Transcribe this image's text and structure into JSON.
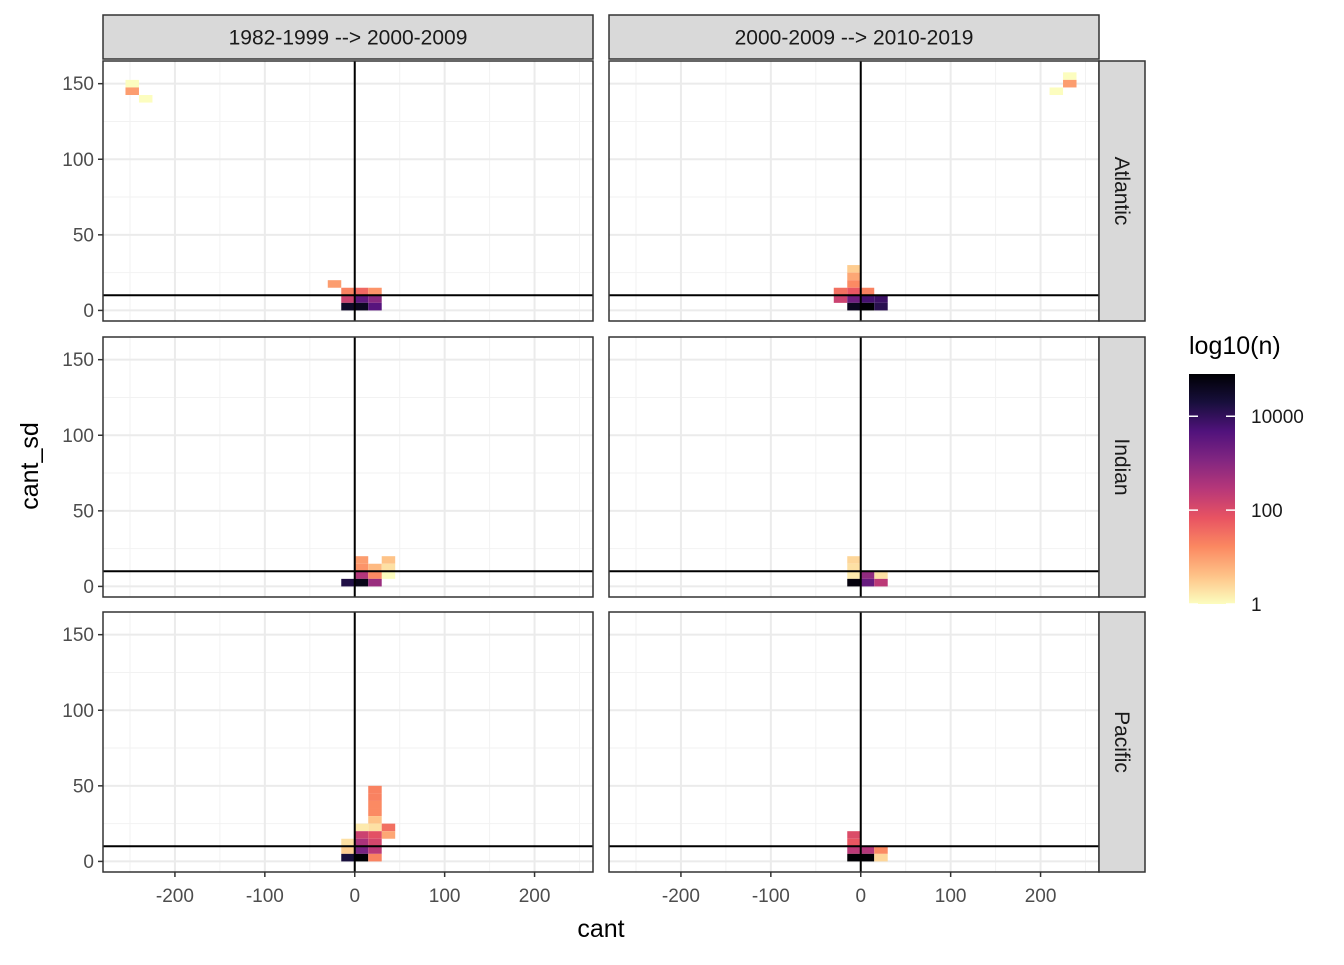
{
  "chart_data": {
    "type": "heatmap",
    "xlabel": "cant",
    "ylabel": "cant_sd",
    "xlim": [
      -280,
      265
    ],
    "ylim": [
      -7,
      165
    ],
    "x_ticks": [
      -200,
      -100,
      0,
      100,
      200
    ],
    "y_ticks": [
      0,
      50,
      100,
      150
    ],
    "bin_width": 15,
    "bin_height": 5,
    "hline_y": 10,
    "vline_x": 0,
    "columns": [
      "1982-1999 --> 2000-2009",
      "2000-2009 --> 2010-2019"
    ],
    "rows": [
      "Atlantic",
      "Indian",
      "Pacific"
    ],
    "legend": {
      "title": "log10(n)",
      "labels": [
        "10000",
        "100",
        "1"
      ],
      "label_values": [
        4,
        2,
        0
      ],
      "range": [
        0,
        4.9
      ],
      "colors": [
        "#FCFDBF",
        "#FEC287",
        "#FB8861",
        "#E85362",
        "#B73779",
        "#822681",
        "#51127C",
        "#180F3D",
        "#000004"
      ]
    },
    "panels": [
      {
        "row": "Atlantic",
        "col": "1982-1999 --> 2000-2009",
        "cells": [
          {
            "x": -247.5,
            "y": 150,
            "v": 0
          },
          {
            "x": -247.5,
            "y": 145,
            "v": 1
          },
          {
            "x": -232.5,
            "y": 140,
            "v": 0
          },
          {
            "x": -22.5,
            "y": 17.5,
            "v": 1
          },
          {
            "x": -7.5,
            "y": 12.5,
            "v": 1.3
          },
          {
            "x": 7.5,
            "y": 12.5,
            "v": 1.6
          },
          {
            "x": 22.5,
            "y": 12.5,
            "v": 1.1
          },
          {
            "x": -7.5,
            "y": 7.5,
            "v": 2.2
          },
          {
            "x": 7.5,
            "y": 7.5,
            "v": 3.5
          },
          {
            "x": 22.5,
            "y": 7.5,
            "v": 3
          },
          {
            "x": -7.5,
            "y": 2.5,
            "v": 4.5
          },
          {
            "x": 7.5,
            "y": 2.5,
            "v": 4.6
          },
          {
            "x": 22.5,
            "y": 2.5,
            "v": 3.6
          }
        ]
      },
      {
        "row": "Atlantic",
        "col": "2000-2009 --> 2010-2019",
        "cells": [
          {
            "x": 232.5,
            "y": 155,
            "v": 0
          },
          {
            "x": 232.5,
            "y": 150,
            "v": 1
          },
          {
            "x": 217.5,
            "y": 145,
            "v": 0
          },
          {
            "x": -7.5,
            "y": 27.5,
            "v": 0.5
          },
          {
            "x": -7.5,
            "y": 22.5,
            "v": 0.9
          },
          {
            "x": -7.5,
            "y": 17.5,
            "v": 1.2
          },
          {
            "x": -22.5,
            "y": 12.5,
            "v": 1.5
          },
          {
            "x": -7.5,
            "y": 12.5,
            "v": 1.8
          },
          {
            "x": 7.5,
            "y": 12.5,
            "v": 1.3
          },
          {
            "x": -22.5,
            "y": 7.5,
            "v": 2.2
          },
          {
            "x": -7.5,
            "y": 7.5,
            "v": 3.3
          },
          {
            "x": 7.5,
            "y": 7.5,
            "v": 3.8
          },
          {
            "x": 22.5,
            "y": 7.5,
            "v": 3.9
          },
          {
            "x": -7.5,
            "y": 2.5,
            "v": 4.6
          },
          {
            "x": 7.5,
            "y": 2.5,
            "v": 4.9
          },
          {
            "x": 22.5,
            "y": 2.5,
            "v": 4.1
          }
        ]
      },
      {
        "row": "Indian",
        "col": "1982-1999 --> 2000-2009",
        "cells": [
          {
            "x": 7.5,
            "y": 17.5,
            "v": 1
          },
          {
            "x": 7.5,
            "y": 12.5,
            "v": 1.1
          },
          {
            "x": 22.5,
            "y": 12.5,
            "v": 0.7
          },
          {
            "x": 37.5,
            "y": 17.5,
            "v": 0.6
          },
          {
            "x": 37.5,
            "y": 12.5,
            "v": 0.3
          },
          {
            "x": 37.5,
            "y": 7.5,
            "v": 0
          },
          {
            "x": 7.5,
            "y": 7.5,
            "v": 2.5
          },
          {
            "x": 22.5,
            "y": 7.5,
            "v": 1.2
          },
          {
            "x": -7.5,
            "y": 2.5,
            "v": 4.2
          },
          {
            "x": 7.5,
            "y": 2.5,
            "v": 4.7
          },
          {
            "x": 22.5,
            "y": 2.5,
            "v": 2.8
          }
        ]
      },
      {
        "row": "Indian",
        "col": "2000-2009 --> 2010-2019",
        "cells": [
          {
            "x": -7.5,
            "y": 17.5,
            "v": 0.4
          },
          {
            "x": -7.5,
            "y": 12.5,
            "v": 0.3
          },
          {
            "x": -7.5,
            "y": 7.5,
            "v": 0.2
          },
          {
            "x": 22.5,
            "y": 7.5,
            "v": 0.3
          },
          {
            "x": -7.5,
            "y": 2.5,
            "v": 4.8
          },
          {
            "x": 7.5,
            "y": 7.5,
            "v": 2.9
          },
          {
            "x": 7.5,
            "y": 2.5,
            "v": 3.4
          },
          {
            "x": 22.5,
            "y": 2.5,
            "v": 2.4
          }
        ]
      },
      {
        "row": "Pacific",
        "col": "1982-1999 --> 2000-2009",
        "cells": [
          {
            "x": 22.5,
            "y": 47.5,
            "v": 1.3
          },
          {
            "x": 22.5,
            "y": 42.5,
            "v": 1.3
          },
          {
            "x": 22.5,
            "y": 37.5,
            "v": 1.2
          },
          {
            "x": 22.5,
            "y": 32.5,
            "v": 1.2
          },
          {
            "x": 22.5,
            "y": 27.5,
            "v": 0.6
          },
          {
            "x": 22.5,
            "y": 22.5,
            "v": 0.3
          },
          {
            "x": 7.5,
            "y": 22.5,
            "v": 0.2
          },
          {
            "x": 37.5,
            "y": 22.5,
            "v": 1.5
          },
          {
            "x": 37.5,
            "y": 17.5,
            "v": 0.9
          },
          {
            "x": -7.5,
            "y": 12.5,
            "v": 0.3
          },
          {
            "x": 7.5,
            "y": 17.5,
            "v": 2.2
          },
          {
            "x": 22.5,
            "y": 17.5,
            "v": 1.9
          },
          {
            "x": 7.5,
            "y": 12.5,
            "v": 2.6
          },
          {
            "x": 22.5,
            "y": 12.5,
            "v": 2.1
          },
          {
            "x": -7.5,
            "y": 7.5,
            "v": 0.5
          },
          {
            "x": 7.5,
            "y": 7.5,
            "v": 3.2
          },
          {
            "x": 22.5,
            "y": 7.5,
            "v": 2.4
          },
          {
            "x": -7.5,
            "y": 2.5,
            "v": 4.3
          },
          {
            "x": 7.5,
            "y": 2.5,
            "v": 4.9
          },
          {
            "x": 22.5,
            "y": 2.5,
            "v": 1.3
          }
        ]
      },
      {
        "row": "Pacific",
        "col": "2000-2009 --> 2010-2019",
        "cells": [
          {
            "x": -7.5,
            "y": 17.5,
            "v": 2
          },
          {
            "x": -7.5,
            "y": 12.5,
            "v": 1.8
          },
          {
            "x": -7.5,
            "y": 7.5,
            "v": 2.4
          },
          {
            "x": 7.5,
            "y": 7.5,
            "v": 2.5
          },
          {
            "x": 22.5,
            "y": 7.5,
            "v": 1.2
          },
          {
            "x": -7.5,
            "y": 2.5,
            "v": 4.9
          },
          {
            "x": 7.5,
            "y": 2.5,
            "v": 4.9
          },
          {
            "x": 22.5,
            "y": 2.5,
            "v": 0.4
          }
        ]
      }
    ]
  }
}
